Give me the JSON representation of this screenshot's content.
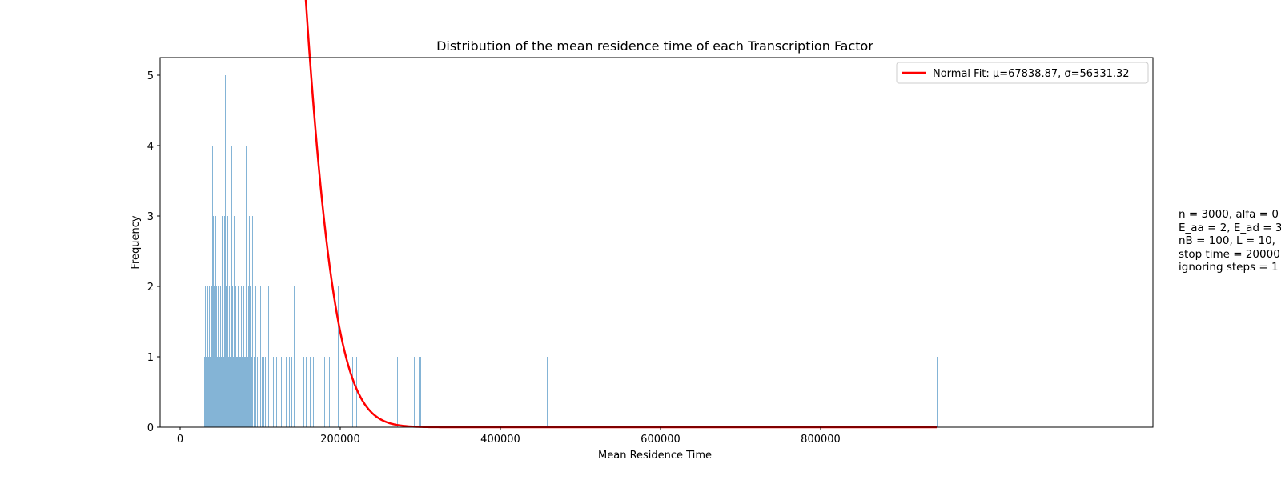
{
  "chart_data": {
    "type": "bar",
    "title": "Distribution of the mean residence time of each Transcription Factor",
    "xlabel": "Mean Residence Time",
    "ylabel": "Frequency",
    "xlim": [
      -25000,
      1215000
    ],
    "ylim": [
      0,
      5.25
    ],
    "xticks": [
      0,
      200000,
      400000,
      600000,
      800000
    ],
    "yticks": [
      0,
      1,
      2,
      3,
      4,
      5
    ],
    "grid": false,
    "legend_position": "top-right",
    "bar_color": "#1f77b4",
    "fit_color": "#ff0000",
    "histogram": {
      "bin_width": 1000,
      "x": [
        30000,
        31000,
        32000,
        33000,
        34000,
        35000,
        36000,
        37000,
        38000,
        39000,
        40000,
        41000,
        42000,
        43000,
        44000,
        45000,
        46000,
        47000,
        48000,
        49000,
        50000,
        51000,
        52000,
        53000,
        54000,
        55000,
        56000,
        57000,
        58000,
        59000,
        60000,
        61000,
        62000,
        63000,
        64000,
        65000,
        66000,
        67000,
        68000,
        69000,
        70000,
        71000,
        72000,
        73000,
        74000,
        75000,
        76000,
        77000,
        78000,
        79000,
        80000,
        81000,
        82000,
        83000,
        84000,
        85000,
        86000,
        87000,
        88000,
        89000,
        90000,
        92000,
        94000,
        96000,
        98000,
        100000,
        102000,
        104000,
        106000,
        108000,
        110000,
        113000,
        116000,
        118000,
        120000,
        123000,
        126000,
        132000,
        136000,
        139000,
        142000,
        154000,
        157000,
        162000,
        166000,
        180000,
        186000,
        197000,
        215000,
        220000,
        271000,
        292000,
        298000,
        300000,
        458000,
        945000
      ],
      "values": [
        1,
        2,
        1,
        1,
        2,
        1,
        2,
        1,
        3,
        2,
        4,
        3,
        2,
        5,
        3,
        2,
        1,
        2,
        3,
        1,
        2,
        1,
        3,
        2,
        1,
        3,
        5,
        2,
        4,
        3,
        1,
        2,
        1,
        3,
        4,
        2,
        1,
        3,
        1,
        2,
        1,
        1,
        2,
        4,
        1,
        1,
        2,
        1,
        3,
        2,
        1,
        1,
        4,
        1,
        1,
        2,
        3,
        2,
        1,
        1,
        3,
        1,
        2,
        1,
        1,
        2,
        1,
        1,
        1,
        1,
        2,
        1,
        1,
        1,
        1,
        1,
        1,
        1,
        1,
        1,
        2,
        1,
        1,
        1,
        1,
        1,
        1,
        2,
        1,
        1,
        1,
        1,
        1,
        1,
        1,
        1
      ]
    },
    "series": [
      {
        "name": "Normal Fit: μ=67838.87, σ=56331.32",
        "type": "line",
        "mean": 67838.87,
        "std": 56331.32,
        "x_range": [
          26000,
          945000
        ]
      }
    ]
  },
  "side_note": {
    "lines": [
      "n = 3000, alfa = 0",
      "E_aa = 2, E_ad = 3",
      "nB = 100, L = 10,",
      "stop time = 20000",
      "ignoring steps = 1"
    ]
  }
}
